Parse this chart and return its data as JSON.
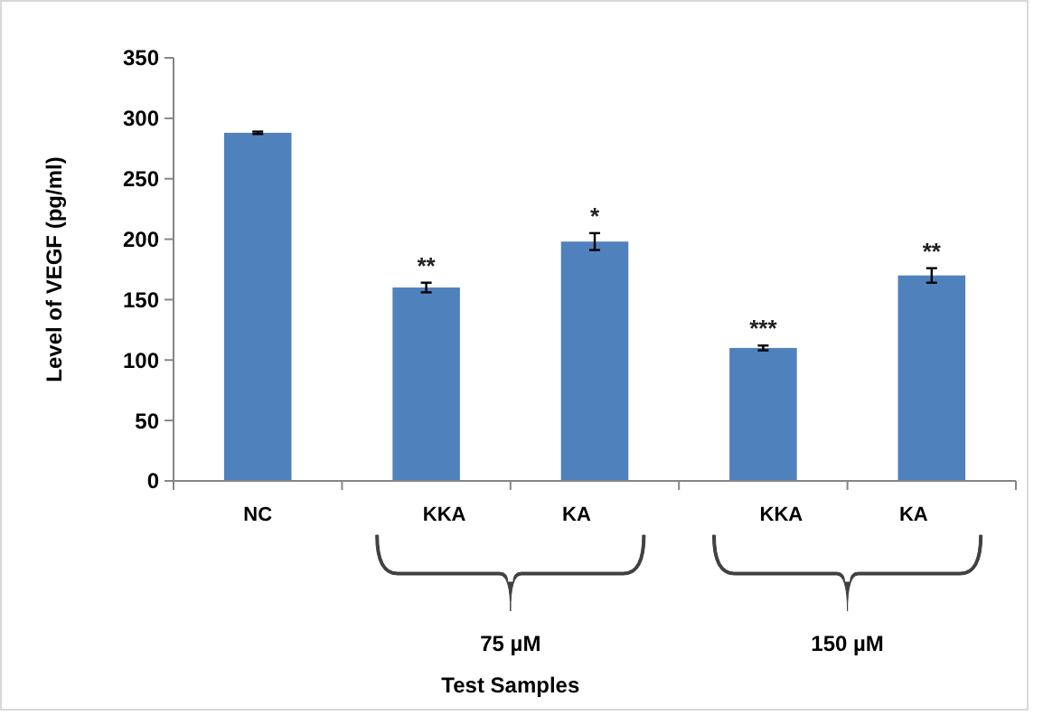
{
  "chart_data": {
    "type": "bar",
    "ylabel": "Level of VEGF (pg/ml)",
    "categories": [
      "NC",
      "KKA",
      "KA",
      "KKA",
      "KA"
    ],
    "values": [
      288,
      160,
      198,
      110,
      170
    ],
    "errors": [
      1,
      4,
      7,
      2,
      6
    ],
    "color": "#4f81bd",
    "ylim": [
      0,
      350
    ],
    "yticks": [
      0,
      50,
      100,
      150,
      200,
      250,
      300,
      350
    ],
    "annotations": [
      "**",
      "*",
      "***",
      "**",
      "75 µM",
      "150 µM",
      "Test Samples"
    ]
  }
}
